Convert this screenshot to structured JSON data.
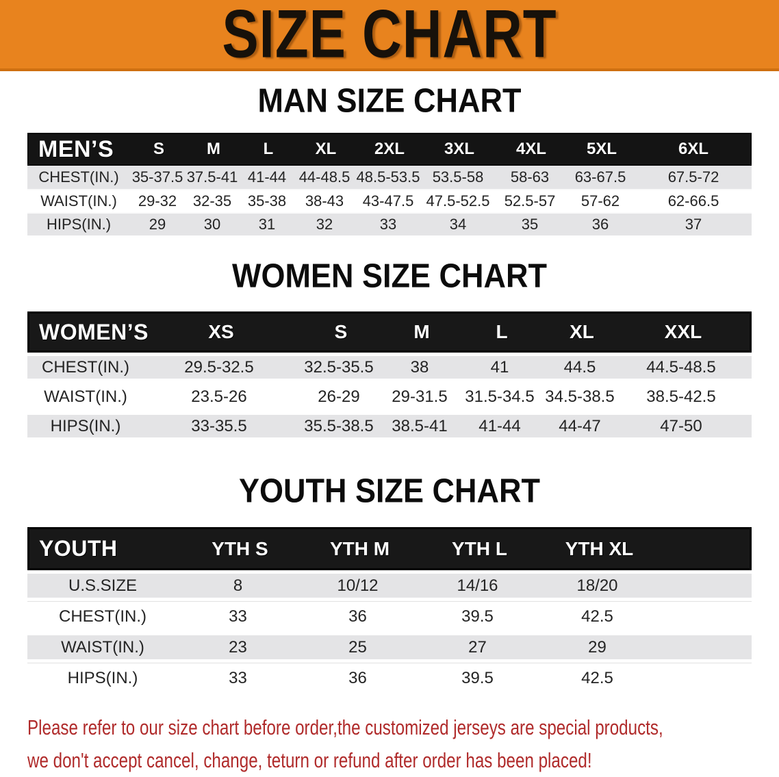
{
  "banner": {
    "title": "SIZE CHART"
  },
  "colors": {
    "banner-bg": "#E8831E",
    "banner-border": "#CE6F10",
    "header-bar": "#141414",
    "row-gray": "#E4E4E6",
    "notice-red": "#B02B2B",
    "text-dark": "#1C1C1C"
  },
  "men": {
    "heading": "MAN SIZE CHART",
    "corner": "MEN’S",
    "sizes": [
      "S",
      "M",
      "L",
      "XL",
      "2XL",
      "3XL",
      "4XL",
      "5XL",
      "6XL"
    ],
    "rows": [
      {
        "label": "CHEST(IN.)",
        "values": [
          "35-37.5",
          "37.5-41",
          "41-44",
          "44-48.5",
          "48.5-53.5",
          "53.5-58",
          "58-63",
          "63-67.5",
          "67.5-72"
        ]
      },
      {
        "label": "WAIST(IN.)",
        "values": [
          "29-32",
          "32-35",
          "35-38",
          "38-43",
          "43-47.5",
          "47.5-52.5",
          "52.5-57",
          "57-62",
          "62-66.5"
        ]
      },
      {
        "label": "HIPS(IN.)",
        "values": [
          "29",
          "30",
          "31",
          "32",
          "33",
          "34",
          "35",
          "36",
          "37"
        ]
      }
    ]
  },
  "women": {
    "heading": "WOMEN SIZE CHART",
    "corner": "WOMEN’S",
    "sizes": [
      "XS",
      "S",
      "M",
      "L",
      "XL",
      "XXL"
    ],
    "rows": [
      {
        "label": "CHEST(IN.)",
        "values": [
          "29.5-32.5",
          "32.5-35.5",
          "38",
          "41",
          "44.5",
          "44.5-48.5"
        ]
      },
      {
        "label": "WAIST(IN.)",
        "values": [
          "23.5-26",
          "26-29",
          "29-31.5",
          "31.5-34.5",
          "34.5-38.5",
          "38.5-42.5"
        ]
      },
      {
        "label": "HIPS(IN.)",
        "values": [
          "33-35.5",
          "35.5-38.5",
          "38.5-41",
          "41-44",
          "44-47",
          "47-50"
        ]
      }
    ]
  },
  "youth": {
    "heading": "YOUTH SIZE CHART",
    "corner": "YOUTH",
    "sizes": [
      "YTH S",
      "YTH M",
      "YTH L",
      "YTH XL"
    ],
    "rows": [
      {
        "label": "U.S.SIZE",
        "values": [
          "8",
          "10/12",
          "14/16",
          "18/20"
        ]
      },
      {
        "label": "CHEST(IN.)",
        "values": [
          "33",
          "36",
          "39.5",
          "42.5"
        ]
      },
      {
        "label": "WAIST(IN.)",
        "values": [
          "23",
          "25",
          "27",
          "29"
        ]
      },
      {
        "label": "HIPS(IN.)",
        "values": [
          "33",
          "36",
          "39.5",
          "42.5"
        ]
      }
    ]
  },
  "footer": {
    "line1": "Please refer to our size chart before order,the customized jerseys are special products,",
    "line2": "we don't accept cancel, change, teturn or refund after order has been placed!"
  }
}
